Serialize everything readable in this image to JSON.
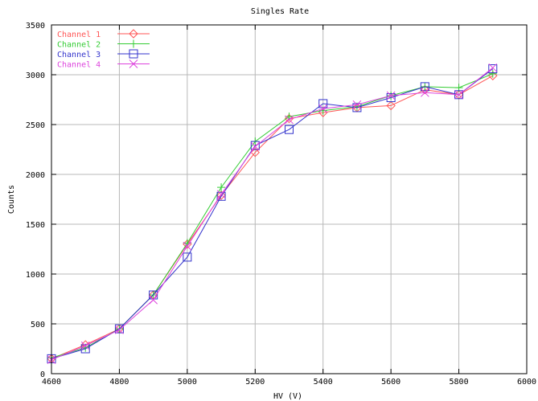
{
  "chart_data": {
    "type": "line",
    "title": "Singles Rate",
    "xlabel": "HV (V)",
    "ylabel": "Counts",
    "xlim": [
      4600,
      6000
    ],
    "ylim": [
      0,
      3500
    ],
    "xticks": [
      4600,
      4800,
      5000,
      5200,
      5400,
      5600,
      5800,
      6000
    ],
    "yticks": [
      0,
      500,
      1000,
      1500,
      2000,
      2500,
      3000,
      3500
    ],
    "grid": true,
    "legend_position": "top-left",
    "x": [
      4600,
      4700,
      4800,
      4900,
      5000,
      5100,
      5200,
      5300,
      5400,
      5500,
      5600,
      5700,
      5800,
      5900
    ],
    "series": [
      {
        "name": "Channel 1",
        "color": "#ff5555",
        "marker": "diamond",
        "values": [
          150,
          290,
          450,
          790,
          1300,
          1790,
          2220,
          2560,
          2620,
          2670,
          2690,
          2850,
          2800,
          2990
        ]
      },
      {
        "name": "Channel 2",
        "color": "#33cc33",
        "marker": "plus",
        "values": [
          160,
          260,
          450,
          790,
          1310,
          1870,
          2330,
          2580,
          2640,
          2680,
          2790,
          2880,
          2870,
          3010
        ]
      },
      {
        "name": "Channel 3",
        "color": "#3333cc",
        "marker": "square",
        "values": [
          150,
          250,
          450,
          790,
          1170,
          1780,
          2290,
          2450,
          2710,
          2670,
          2770,
          2880,
          2800,
          3060
        ]
      },
      {
        "name": "Channel 4",
        "color": "#dd44dd",
        "marker": "x",
        "values": [
          140,
          280,
          440,
          740,
          1280,
          1800,
          2280,
          2550,
          2660,
          2700,
          2790,
          2820,
          2800,
          3070
        ]
      }
    ]
  }
}
